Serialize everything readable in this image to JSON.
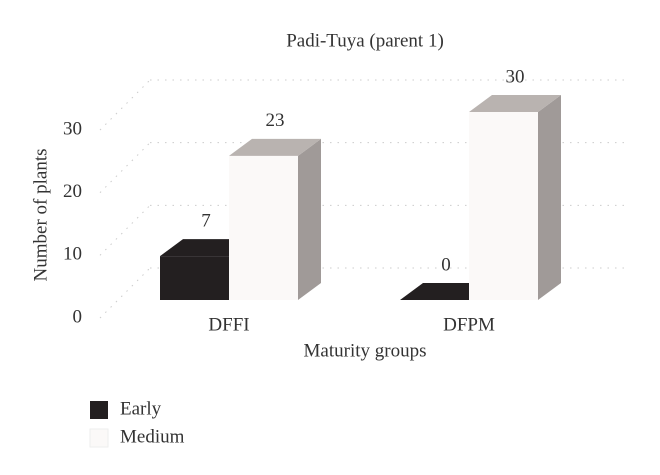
{
  "chart_data": {
    "type": "bar3d",
    "title": "Padi-Tuya (parent 1)",
    "x_label": "Maturity groups",
    "y_label": "Number of plants",
    "categories": [
      "DFFI",
      "DFPM"
    ],
    "series": [
      {
        "name": "Early",
        "color": "#231f20",
        "values": [
          7,
          0
        ]
      },
      {
        "name": "Medium",
        "color": "#fbf9f8",
        "values": [
          23,
          30
        ]
      }
    ],
    "ylim": [
      0,
      30
    ],
    "yticks": [
      0,
      10,
      20,
      30
    ],
    "grid": true
  }
}
